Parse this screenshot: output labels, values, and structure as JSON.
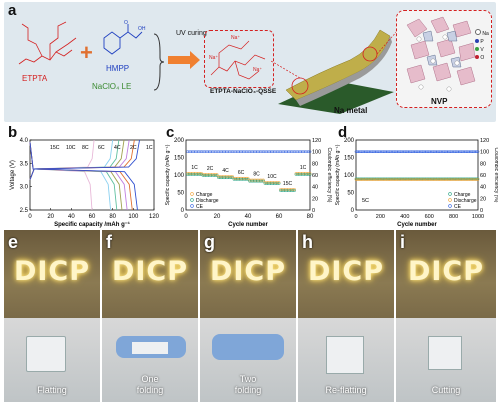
{
  "panel_a": {
    "label": "a",
    "etpta": "ETPTA",
    "hmpp": "HMPP",
    "le": "NaClO₄ LE",
    "uv": "UV curing",
    "gsse": "ETPTA-NaClO₄-QSSE",
    "na_metal": "Na metal",
    "nvp": "NVP",
    "na_ion": "Na⁺",
    "legend": [
      "Na",
      "P",
      "V",
      "O"
    ],
    "legend_colors": [
      "#ffffff",
      "#2a3fb0",
      "#3aa040",
      "#c02030"
    ]
  },
  "panel_b": {
    "label": "b",
    "rates": [
      "15C",
      "10C",
      "8C",
      "6C",
      "4C",
      "2C",
      "1C"
    ],
    "xlabel": "Specific capacity /mAh g⁻¹",
    "ylabel": "Voltage (V)",
    "xticks": [
      "0",
      "20",
      "40",
      "60",
      "80",
      "100",
      "120"
    ],
    "yticks": [
      "2.5",
      "3.0",
      "3.5",
      "4.0"
    ],
    "colors": [
      "#e8b8d8",
      "#8ad0f0",
      "#60c0a0",
      "#a0a050",
      "#c080e0",
      "#e07030",
      "#3050d0",
      "#202020"
    ]
  },
  "panel_c": {
    "label": "c",
    "ylabel": "Specific capacity (mAh g⁻¹)",
    "y2label": "Coulombic efficiency (%)",
    "xlabel": "Cycle number",
    "xticks": [
      "0",
      "20",
      "40",
      "60",
      "80"
    ],
    "yticks": [
      "0",
      "50",
      "100",
      "150",
      "200"
    ],
    "y2ticks": [
      "0",
      "20",
      "40",
      "60",
      "80",
      "100",
      "120"
    ],
    "rate_labels": [
      "1C",
      "2C",
      "4C",
      "6C",
      "8C",
      "10C",
      "15C",
      "1C"
    ],
    "legend": [
      "Charge",
      "Discharge",
      "CE"
    ]
  },
  "panel_d": {
    "label": "d",
    "ylabel": "Specific capacity (mAh g⁻¹)",
    "y2label": "Coulombic efficiency (%)",
    "xlabel": "Cycle number",
    "xticks": [
      "0",
      "200",
      "400",
      "600",
      "800",
      "1000"
    ],
    "yticks": [
      "0",
      "50",
      "100",
      "150",
      "200"
    ],
    "y2ticks": [
      "0",
      "20",
      "40",
      "60",
      "80",
      "100",
      "120"
    ],
    "rate": "5C",
    "legend": [
      "Charge",
      "Discharge",
      "CE"
    ]
  },
  "photos": [
    {
      "label": "e",
      "caption": "Flatting"
    },
    {
      "label": "f",
      "caption": "One\nfolding"
    },
    {
      "label": "g",
      "caption": "Two\nfolding"
    },
    {
      "label": "h",
      "caption": "Re-flatting"
    },
    {
      "label": "i",
      "caption": "Cutting"
    }
  ],
  "dicp": "DICP",
  "chart_data": [
    {
      "type": "line",
      "title": "",
      "xlabel": "Specific capacity /mAh g⁻¹",
      "ylabel": "Voltage (V)",
      "xlim": [
        0,
        120
      ],
      "ylim": [
        2.5,
        4.0
      ],
      "series": [
        {
          "name": "15C",
          "charge_end": 62,
          "discharge_end": 60
        },
        {
          "name": "10C",
          "charge_end": 80,
          "discharge_end": 78
        },
        {
          "name": "8C",
          "charge_end": 86,
          "discharge_end": 84
        },
        {
          "name": "6C",
          "charge_end": 91,
          "discharge_end": 89
        },
        {
          "name": "4C",
          "charge_end": 96,
          "discharge_end": 94
        },
        {
          "name": "2C",
          "charge_end": 101,
          "discharge_end": 99
        },
        {
          "name": "1C",
          "charge_end": 106,
          "discharge_end": 104
        }
      ]
    },
    {
      "type": "scatter",
      "xlabel": "Cycle number",
      "ylabel": "Specific capacity (mAh g⁻¹)",
      "xlim": [
        0,
        80
      ],
      "ylim": [
        0,
        200
      ],
      "segments": [
        {
          "rate": "1C",
          "cycles": [
            1,
            10
          ],
          "capacity": 103
        },
        {
          "rate": "2C",
          "cycles": [
            11,
            20
          ],
          "capacity": 100
        },
        {
          "rate": "4C",
          "cycles": [
            21,
            30
          ],
          "capacity": 94
        },
        {
          "rate": "6C",
          "cycles": [
            31,
            40
          ],
          "capacity": 89
        },
        {
          "rate": "8C",
          "cycles": [
            41,
            50
          ],
          "capacity": 84
        },
        {
          "rate": "10C",
          "cycles": [
            51,
            60
          ],
          "capacity": 77
        },
        {
          "rate": "15C",
          "cycles": [
            61,
            70
          ],
          "capacity": 57
        },
        {
          "rate": "1C",
          "cycles": [
            71,
            80
          ],
          "capacity": 103
        }
      ],
      "ce_percent": 100
    },
    {
      "type": "scatter",
      "xlabel": "Cycle number",
      "ylabel": "Specific capacity (mAh g⁻¹)",
      "xlim": [
        0,
        1000
      ],
      "ylim": [
        0,
        200
      ],
      "capacity": 88,
      "ce_percent": 100,
      "rate": "5C"
    }
  ]
}
